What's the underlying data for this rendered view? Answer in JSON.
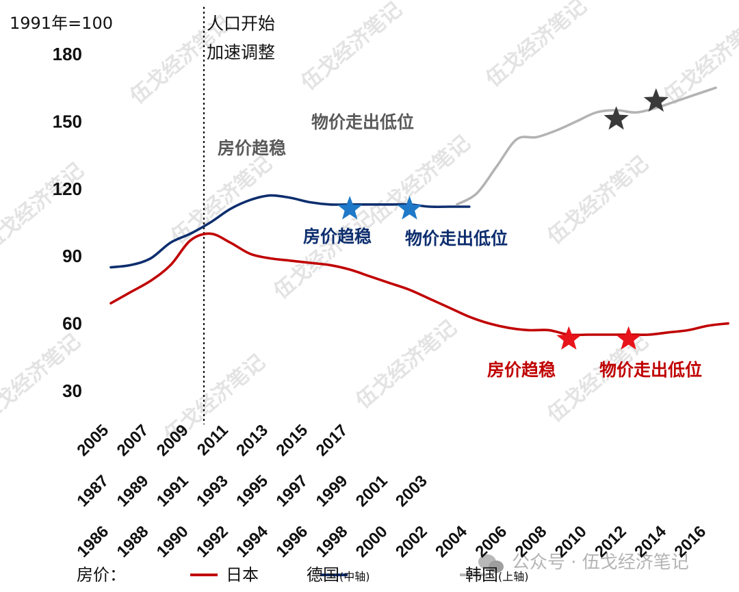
{
  "chart_data": {
    "type": "line",
    "unit_label": "1991年=100",
    "yticks": [
      180,
      150,
      120,
      90,
      60,
      30
    ],
    "ylim": [
      30,
      180
    ],
    "x_rows": {
      "korea": [
        "2005",
        "2007",
        "2009",
        "2011",
        "2013",
        "2015",
        "2017"
      ],
      "germany": [
        "1987",
        "1989",
        "1991",
        "1993",
        "1995",
        "1997",
        "1999",
        "2001",
        "2003"
      ],
      "japan": [
        "1986",
        "1988",
        "1990",
        "1992",
        "1994",
        "1996",
        "1998",
        "2000",
        "2002",
        "2004",
        "2006",
        "2008",
        "2010",
        "2012",
        "2014",
        "2016"
      ]
    },
    "population_line": {
      "label_line1": "人口开始",
      "label_line2": "加速调整"
    },
    "series": [
      {
        "name": "日本",
        "color": "#c00000",
        "x": [
          1986,
          1987,
          1988,
          1989,
          1990,
          1991,
          1992,
          1993,
          1994,
          1995,
          1996,
          1997,
          1998,
          1999,
          2000,
          2001,
          2002,
          2003,
          2004,
          2005,
          2006,
          2007,
          2008,
          2009,
          2010,
          2011,
          2012,
          2013,
          2014,
          2015,
          2016,
          2017
        ],
        "values": [
          69,
          74,
          79,
          86,
          97,
          100,
          96,
          91,
          89,
          88,
          87,
          86,
          84,
          81,
          78,
          75,
          71,
          67,
          63,
          60,
          58,
          57,
          57,
          55,
          55,
          55,
          55,
          55,
          56,
          57,
          59,
          60
        ],
        "markers": [
          {
            "x": 2009,
            "value": 53,
            "label": "房价趋稳"
          },
          {
            "x": 2012,
            "value": 53,
            "label": "物价走出低位"
          }
        ]
      },
      {
        "name": "德国",
        "axis_note": "(中轴)",
        "color": "#0d2e6e",
        "x": [
          1986,
          1987,
          1988,
          1989,
          1990,
          1991,
          1992,
          1993,
          1994,
          1995,
          1996,
          1997,
          1998,
          1999,
          2000,
          2001,
          2002,
          2003,
          2004
        ],
        "values": [
          85,
          86,
          89,
          96,
          100,
          105,
          111,
          115,
          117,
          116,
          114,
          113,
          113,
          113,
          113,
          113,
          112,
          112,
          112
        ],
        "markers": [
          {
            "x": 1998,
            "value": 111,
            "label": "房价趋稳"
          },
          {
            "x": 2001,
            "value": 111,
            "label": "物价走出低位"
          }
        ]
      },
      {
        "name": "韩国",
        "axis_note": "(上轴)",
        "color": "#b3b3b3",
        "x": [
          2004,
          2005,
          2006,
          2007,
          2008,
          2009,
          2010,
          2011,
          2012,
          2013,
          2014,
          2015,
          2016,
          2017
        ],
        "values": [
          113,
          118,
          130,
          142,
          143,
          146,
          150,
          154,
          155,
          154,
          156,
          159,
          162,
          165
        ],
        "markers": [
          {
            "x": 2012,
            "value": 151,
            "label": "房价趋稳"
          },
          {
            "x": 2014,
            "value": 159,
            "label": "物价走出低位"
          }
        ]
      }
    ],
    "legend_title": "房价：",
    "legend_position": "bottom",
    "grid": false
  },
  "watermark": {
    "text": "伍戈经济笔记",
    "wechat_caption": "公众号 · 伍戈经济笔记"
  }
}
